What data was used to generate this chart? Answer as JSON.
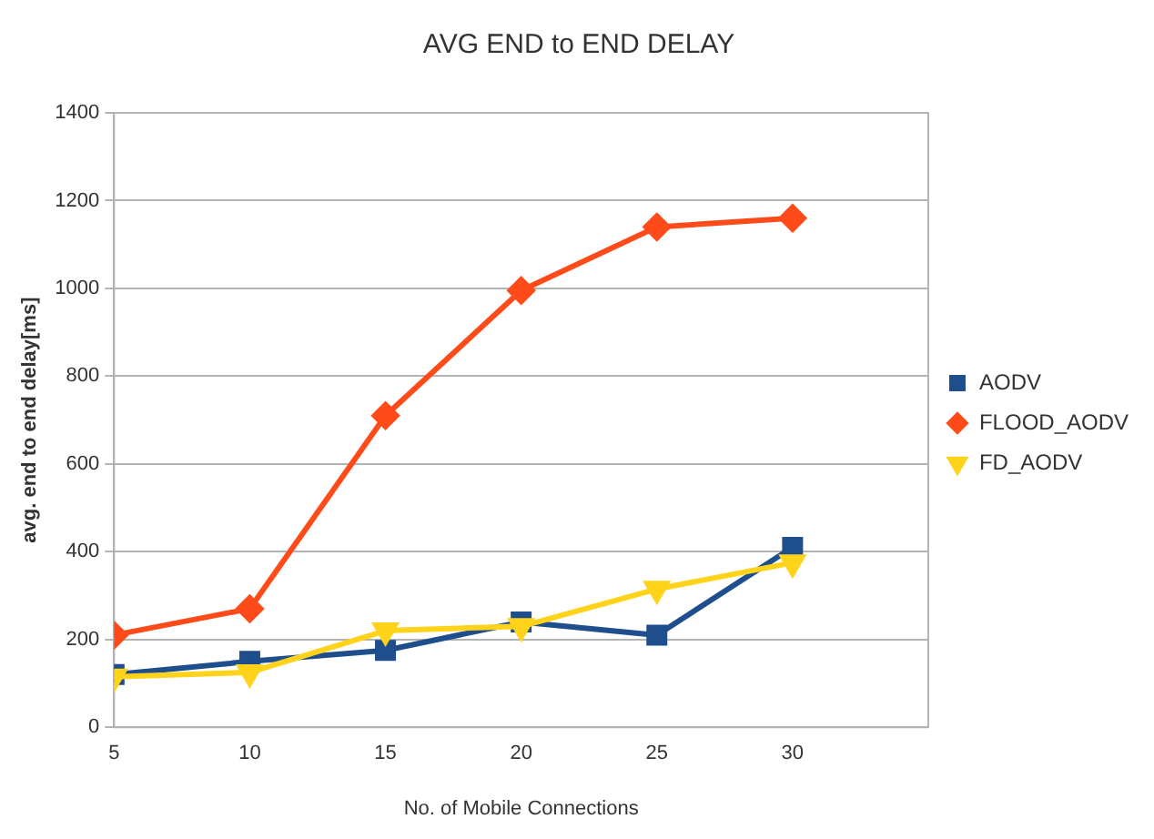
{
  "chart_data": {
    "type": "line",
    "title": "AVG END to END DELAY",
    "xlabel": "No. of Mobile Connections",
    "ylabel": "avg. end to end delay[ms]",
    "x": [
      5,
      10,
      15,
      20,
      25,
      30
    ],
    "xlim": [
      5,
      35
    ],
    "xticks": [
      5,
      10,
      15,
      20,
      25,
      30
    ],
    "ylim": [
      0,
      1400
    ],
    "yticks": [
      0,
      200,
      400,
      600,
      800,
      1000,
      1200,
      1400
    ],
    "grid": "y",
    "legend": "right",
    "line_style": "solid",
    "series": [
      {
        "name": "AODV",
        "color": "#1f4e8c",
        "marker": "square",
        "values": [
          120,
          150,
          175,
          240,
          210,
          410
        ]
      },
      {
        "name": "FLOOD_AODV",
        "color": "#ff4a1a",
        "marker": "diamond",
        "values": [
          210,
          270,
          710,
          995,
          1140,
          1160
        ]
      },
      {
        "name": "FD_AODV",
        "color": "#ffd31a",
        "marker": "triangle",
        "values": [
          115,
          125,
          220,
          230,
          315,
          375
        ]
      }
    ]
  }
}
